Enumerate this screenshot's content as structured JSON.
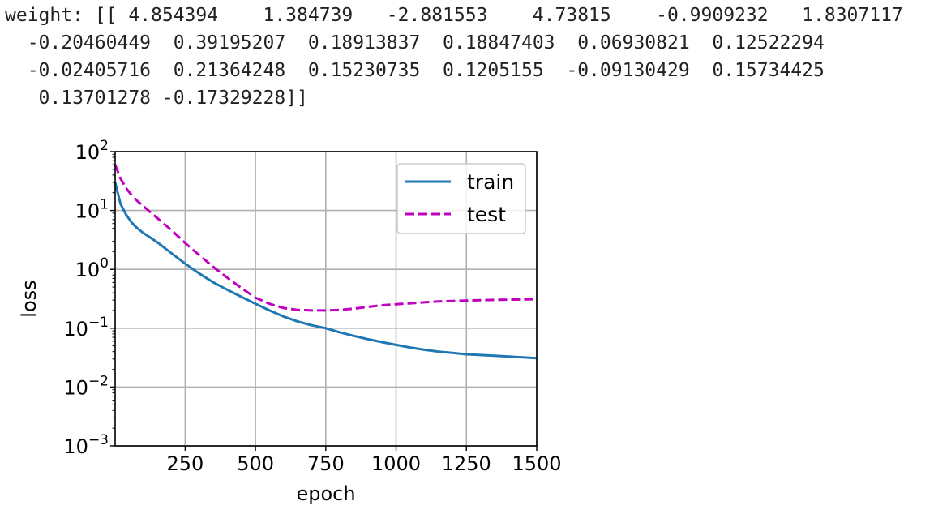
{
  "output_lines": [
    "weight: [[ 4.854394    1.384739   -2.881553    4.73815    -0.9909232   1.8307117",
    "  -0.20460449  0.39195207  0.18913837  0.18847403  0.06930821  0.12522294",
    "  -0.02405716  0.21364248  0.15230735  0.1205155  -0.09130429  0.15734425",
    "   0.13701278 -0.17329228]]"
  ],
  "chart_data": {
    "type": "line",
    "xlabel": "epoch",
    "ylabel": "loss",
    "yscale": "log",
    "xlim": [
      1,
      1500
    ],
    "ylim": [
      0.001,
      100
    ],
    "grid": true,
    "legend_position": "top-right",
    "x_ticks": [
      250,
      500,
      750,
      1000,
      1250,
      1500
    ],
    "x_tick_labels": [
      "250",
      "500",
      "750",
      "1000",
      "1250",
      "1500"
    ],
    "y_ticks": [
      0.001,
      0.01,
      0.1,
      1,
      10,
      100
    ],
    "y_tick_labels": [
      {
        "base": "10",
        "exp": "−3"
      },
      {
        "base": "10",
        "exp": "−2"
      },
      {
        "base": "10",
        "exp": "−1"
      },
      {
        "base": "10",
        "exp": "0"
      },
      {
        "base": "10",
        "exp": "1"
      },
      {
        "base": "10",
        "exp": "2"
      }
    ],
    "x": [
      1,
      20,
      40,
      60,
      80,
      100,
      150,
      200,
      250,
      300,
      350,
      400,
      450,
      500,
      550,
      600,
      650,
      700,
      750,
      800,
      850,
      900,
      950,
      1000,
      1050,
      1100,
      1150,
      1200,
      1250,
      1300,
      1350,
      1400,
      1450,
      1500
    ],
    "series": [
      {
        "name": "train",
        "color": "#1f77b4",
        "dash": "solid",
        "values": [
          30,
          13,
          8.5,
          6.2,
          5.0,
          4.2,
          2.9,
          1.9,
          1.25,
          0.85,
          0.6,
          0.45,
          0.34,
          0.26,
          0.2,
          0.158,
          0.13,
          0.112,
          0.1,
          0.085,
          0.074,
          0.065,
          0.058,
          0.052,
          0.047,
          0.043,
          0.04,
          0.038,
          0.036,
          0.035,
          0.034,
          0.033,
          0.032,
          0.031
        ]
      },
      {
        "name": "test",
        "color": "#bf00bf",
        "dash": "dashed",
        "values": [
          60,
          35,
          24,
          18,
          14.5,
          12,
          7.5,
          4.7,
          2.8,
          1.75,
          1.1,
          0.72,
          0.48,
          0.33,
          0.26,
          0.22,
          0.205,
          0.2,
          0.2,
          0.205,
          0.215,
          0.23,
          0.245,
          0.255,
          0.265,
          0.275,
          0.285,
          0.29,
          0.295,
          0.3,
          0.303,
          0.305,
          0.308,
          0.31
        ]
      }
    ]
  }
}
